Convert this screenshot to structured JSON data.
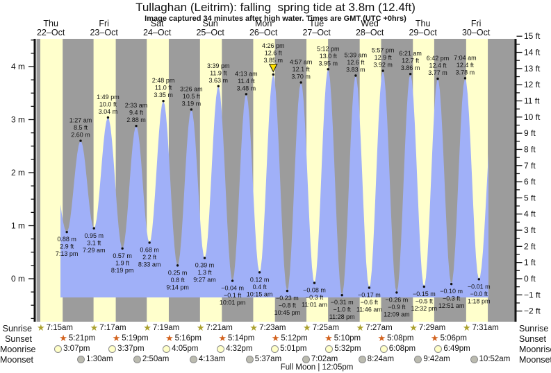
{
  "title": "Tullaghan (Leitrim): falling  spring tide at 3.8m (12.4ft)",
  "subtitle": "Image captured 34 minutes after high water. Times are GMT (UTC +0hrs)",
  "colors": {
    "day_band": "#FFFFCC",
    "night_band": "#9C9C9C",
    "tide_fill": "#A0B0F8",
    "date_text": "#CC2211",
    "annotation_text": "#111111",
    "sunrise_icon": "#ABA12E",
    "sunset_icon": "#D2621E",
    "moonrise_icon": "#FFFFC8",
    "moonset_icon": "#BBBBB0",
    "current_marker": "#FFE000"
  },
  "chart_data": {
    "type": "area",
    "title": "Tullaghan (Leitrim) tide height",
    "y_axis_left": {
      "unit": "m",
      "major_ticks": [
        0,
        1,
        2,
        3,
        4
      ],
      "minor_step": 0.25,
      "range": [
        -0.8,
        4.52
      ]
    },
    "y_axis_right": {
      "unit": "ft",
      "major_min": -2,
      "major_max": 15,
      "minor_step": 0.5
    },
    "days": [
      {
        "name": "Thu",
        "date": "22–Oct"
      },
      {
        "name": "Fri",
        "date": "23–Oct"
      },
      {
        "name": "Sat",
        "date": "24–Oct"
      },
      {
        "name": "Sun",
        "date": "25–Oct"
      },
      {
        "name": "Mon",
        "date": "26–Oct"
      },
      {
        "name": "Tue",
        "date": "27–Oct"
      },
      {
        "name": "Wed",
        "date": "28–Oct"
      },
      {
        "name": "Thu",
        "date": "29–Oct"
      },
      {
        "name": "Fri",
        "date": "30–Oct"
      }
    ],
    "tides": [
      {
        "type": "low",
        "day": 0,
        "time": "7:13 pm",
        "m": 0.88,
        "ft": 2.9,
        "labels": [
          "0.88 m",
          "2.9 ft",
          "7:13 pm"
        ]
      },
      {
        "type": "high",
        "day": 1,
        "time": "1:27 am",
        "m": 2.6,
        "ft": 8.5,
        "labels": [
          "1:27 am",
          "8.5 ft",
          "2.60 m"
        ]
      },
      {
        "type": "low",
        "day": 1,
        "time": "7:29 am",
        "m": 0.95,
        "ft": 3.1,
        "labels": [
          "0.95 m",
          "3.1 ft",
          "7:29 am"
        ]
      },
      {
        "type": "high",
        "day": 1,
        "time": "1:49 pm",
        "m": 3.04,
        "ft": 10.0,
        "labels": [
          "1:49 pm",
          "10.0 ft",
          "3.04 m"
        ]
      },
      {
        "type": "low",
        "day": 1,
        "time": "8:19 pm",
        "m": 0.57,
        "ft": 1.9,
        "labels": [
          "0.57 m",
          "1.9 ft",
          "8:19 pm"
        ]
      },
      {
        "type": "high",
        "day": 2,
        "time": "2:33 am",
        "m": 2.88,
        "ft": 9.4,
        "labels": [
          "2:33 am",
          "9.4 ft",
          "2.88 m"
        ]
      },
      {
        "type": "low",
        "day": 2,
        "time": "8:33 am",
        "m": 0.68,
        "ft": 2.2,
        "labels": [
          "0.68 m",
          "2.2 ft",
          "8:33 am"
        ]
      },
      {
        "type": "high",
        "day": 2,
        "time": "2:48 pm",
        "m": 3.35,
        "ft": 11.0,
        "labels": [
          "2:48 pm",
          "11.0 ft",
          "3.35 m"
        ]
      },
      {
        "type": "low",
        "day": 2,
        "time": "9:14 pm",
        "m": 0.25,
        "ft": 0.8,
        "labels": [
          "0.25 m",
          "0.8 ft",
          "9:14 pm"
        ]
      },
      {
        "type": "high",
        "day": 3,
        "time": "3:26 am",
        "m": 3.19,
        "ft": 10.5,
        "labels": [
          "3:26 am",
          "10.5 ft",
          "3.19 m"
        ]
      },
      {
        "type": "low",
        "day": 3,
        "time": "9:27 am",
        "m": 0.39,
        "ft": 1.3,
        "labels": [
          "0.39 m",
          "1.3 ft",
          "9:27 am"
        ]
      },
      {
        "type": "high",
        "day": 3,
        "time": "3:39 pm",
        "m": 3.63,
        "ft": 11.9,
        "labels": [
          "3:39 pm",
          "11.9 ft",
          "3.63 m"
        ]
      },
      {
        "type": "low",
        "day": 3,
        "time": "10:01 pm",
        "m": -0.04,
        "ft": -0.1,
        "labels": [
          "−0.04 m",
          "−0.1 ft",
          "10:01 pm"
        ]
      },
      {
        "type": "high",
        "day": 4,
        "time": "4:13 am",
        "m": 3.48,
        "ft": 11.4,
        "labels": [
          "4:13 am",
          "11.4 ft",
          "3.48 m"
        ]
      },
      {
        "type": "low",
        "day": 4,
        "time": "10:15 am",
        "m": 0.12,
        "ft": 0.4,
        "labels": [
          "0.12 m",
          "0.4 ft",
          "10:15 am"
        ]
      },
      {
        "type": "high",
        "day": 4,
        "time": "4:26 pm",
        "m": 3.85,
        "ft": 12.6,
        "labels": [
          "4:26 pm",
          "12.6 ft",
          "3.85 m"
        ],
        "current": true
      },
      {
        "type": "low",
        "day": 4,
        "time": "10:45 pm",
        "m": -0.23,
        "ft": -0.8,
        "labels": [
          "−0.23 m",
          "−0.8 ft",
          "10:45 pm"
        ]
      },
      {
        "type": "high",
        "day": 5,
        "time": "4:57 am",
        "m": 3.7,
        "ft": 12.1,
        "labels": [
          "4:57 am",
          "12.1 ft",
          "3.70 m"
        ]
      },
      {
        "type": "low",
        "day": 5,
        "time": "11:01 am",
        "m": -0.08,
        "ft": -0.3,
        "labels": [
          "−0.08 m",
          "−0.3 ft",
          "11:01 am"
        ]
      },
      {
        "type": "high",
        "day": 5,
        "time": "5:12 pm",
        "m": 3.95,
        "ft": 13.0,
        "labels": [
          "5:12 pm",
          "13.0 ft",
          "3.95 m"
        ]
      },
      {
        "type": "low",
        "day": 5,
        "time": "11:28 pm",
        "m": -0.31,
        "ft": -1.0,
        "labels": [
          "−0.31 m",
          "−1.0 ft",
          "11:28 pm"
        ]
      },
      {
        "type": "high",
        "day": 6,
        "time": "5:39 am",
        "m": 3.83,
        "ft": 12.6,
        "labels": [
          "5:39 am",
          "12.6 ft",
          "3.83 m"
        ]
      },
      {
        "type": "low",
        "day": 6,
        "time": "11:46 am",
        "m": -0.17,
        "ft": -0.6,
        "labels": [
          "−0.17 m",
          "−0.6 ft",
          "11:46 am"
        ]
      },
      {
        "type": "high",
        "day": 6,
        "time": "5:57 pm",
        "m": 3.92,
        "ft": 12.9,
        "labels": [
          "5:57 pm",
          "12.9 ft",
          "3.92 m"
        ]
      },
      {
        "type": "low",
        "day": 7,
        "time": "12:09 am",
        "m": -0.26,
        "ft": -0.9,
        "labels": [
          "−0.26 m",
          "−0.9 ft",
          "12:09 am"
        ]
      },
      {
        "type": "high",
        "day": 7,
        "time": "6:21 am",
        "m": 3.86,
        "ft": 12.7,
        "labels": [
          "6:21 am",
          "12.7 ft",
          "3.86 m"
        ]
      },
      {
        "type": "low",
        "day": 7,
        "time": "12:32 pm",
        "m": -0.15,
        "ft": -0.5,
        "labels": [
          "−0.15 m",
          "−0.5 ft",
          "12:32 pm"
        ]
      },
      {
        "type": "high",
        "day": 7,
        "time": "6:42 pm",
        "m": 3.77,
        "ft": 12.4,
        "labels": [
          "6:42 pm",
          "12.4 ft",
          "3.77 m"
        ]
      },
      {
        "type": "low",
        "day": 8,
        "time": "12:51 am",
        "m": -0.1,
        "ft": -0.3,
        "labels": [
          "−0.10 m",
          "−0.3 ft",
          "12:51 am"
        ]
      },
      {
        "type": "high",
        "day": 8,
        "time": "7:04 am",
        "m": 3.78,
        "ft": 12.4,
        "labels": [
          "7:04 am",
          "12.4 ft",
          "3.78 m"
        ]
      },
      {
        "type": "low",
        "day": 8,
        "time": "1:18 pm",
        "m": -0.01,
        "ft": -0.0,
        "labels": [
          "−0.01 m",
          "−0.0 ft",
          "1:18 pm"
        ]
      }
    ]
  },
  "almanac": {
    "sunrise": {
      "label": "Sunrise",
      "times": [
        {
          "day": 0,
          "time": "7:15am"
        },
        {
          "day": 1,
          "time": "7:17am"
        },
        {
          "day": 2,
          "time": "7:19am"
        },
        {
          "day": 3,
          "time": "7:21am"
        },
        {
          "day": 4,
          "time": "7:23am"
        },
        {
          "day": 5,
          "time": "7:25am"
        },
        {
          "day": 6,
          "time": "7:27am"
        },
        {
          "day": 7,
          "time": "7:29am"
        },
        {
          "day": 8,
          "time": "7:31am"
        }
      ]
    },
    "sunset": {
      "label": "Sunset",
      "times": [
        {
          "day": 0,
          "time": "5:21pm"
        },
        {
          "day": 1,
          "time": "5:19pm"
        },
        {
          "day": 2,
          "time": "5:16pm"
        },
        {
          "day": 3,
          "time": "5:14pm"
        },
        {
          "day": 4,
          "time": "5:12pm"
        },
        {
          "day": 5,
          "time": "5:10pm"
        },
        {
          "day": 6,
          "time": "5:08pm"
        },
        {
          "day": 7,
          "time": "5:06pm"
        }
      ]
    },
    "moonrise": {
      "label": "Moonrise",
      "times": [
        {
          "day": 0,
          "time": "3:07pm"
        },
        {
          "day": 1,
          "time": "3:37pm"
        },
        {
          "day": 2,
          "time": "4:05pm"
        },
        {
          "day": 3,
          "time": "4:32pm"
        },
        {
          "day": 4,
          "time": "5:01pm"
        },
        {
          "day": 5,
          "time": "5:32pm"
        },
        {
          "day": 6,
          "time": "6:08pm"
        },
        {
          "day": 7,
          "time": "6:49pm"
        }
      ]
    },
    "moonset": {
      "label": "Moonset",
      "times": [
        {
          "day": 1,
          "time": "1:30am"
        },
        {
          "day": 2,
          "time": "2:50am"
        },
        {
          "day": 3,
          "time": "4:13am"
        },
        {
          "day": 4,
          "time": "5:37am"
        },
        {
          "day": 5,
          "time": "7:02am"
        },
        {
          "day": 6,
          "time": "8:24am"
        },
        {
          "day": 7,
          "time": "9:42am"
        },
        {
          "day": 8,
          "time": "10:52am"
        }
      ]
    },
    "footnote": "Full Moon | 12:05pm"
  }
}
